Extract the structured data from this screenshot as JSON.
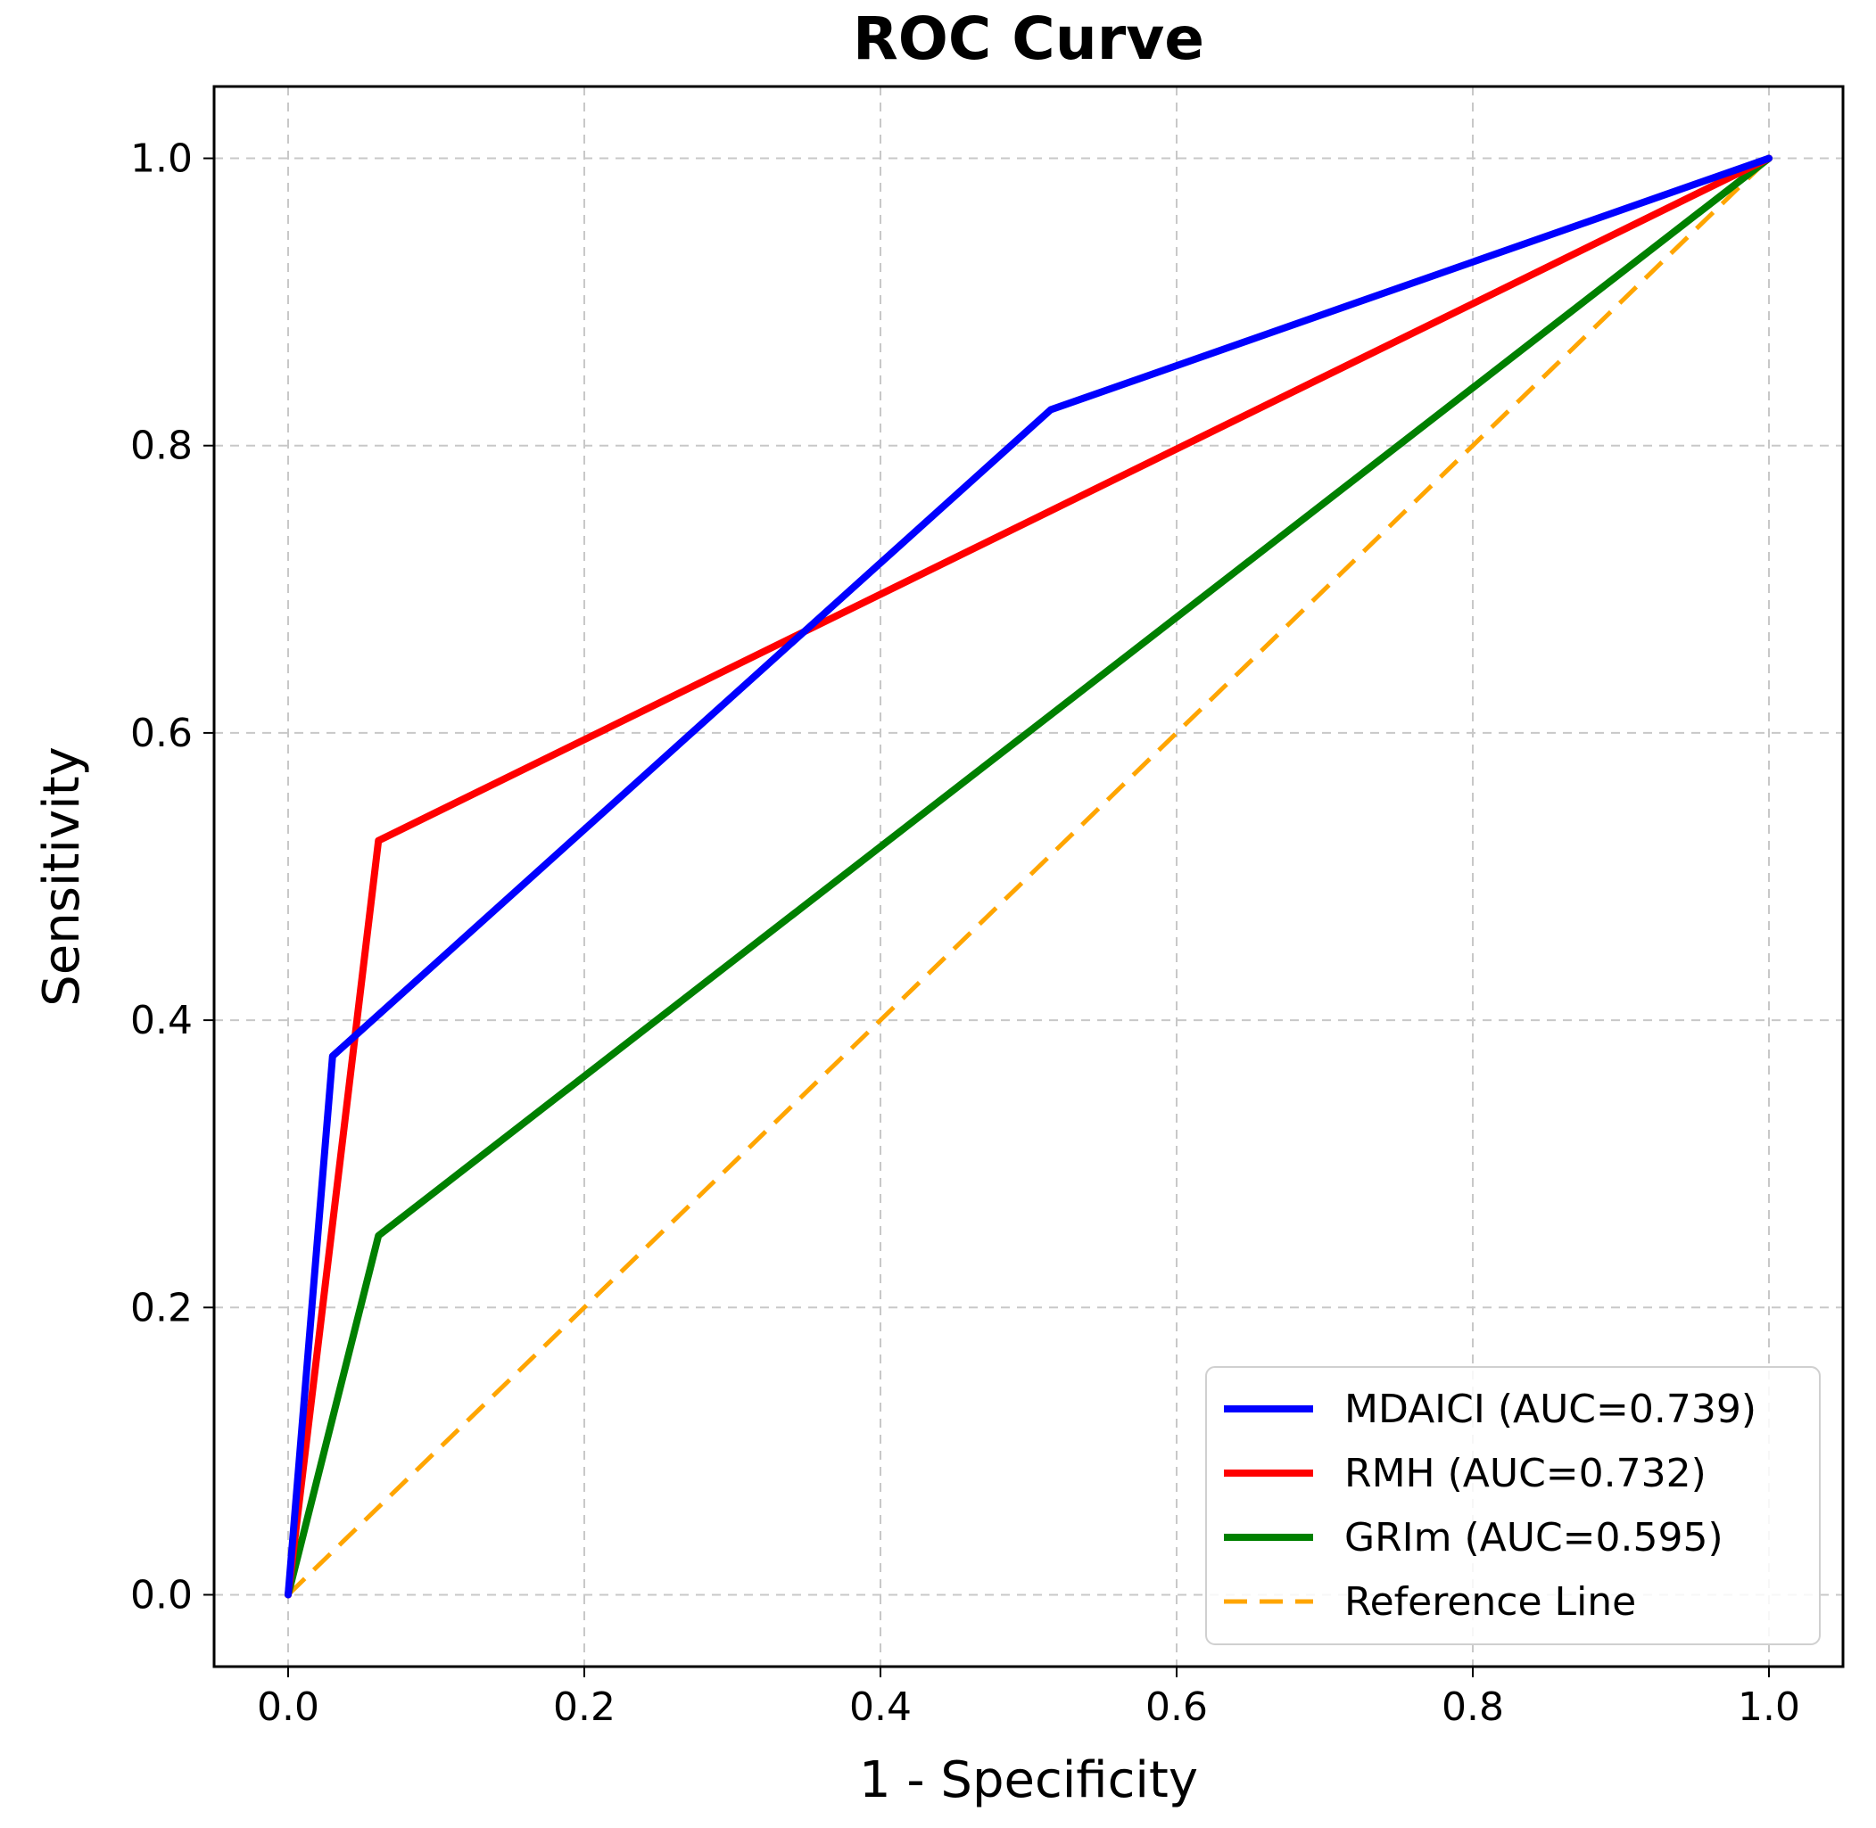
{
  "chart_data": {
    "type": "line",
    "title": "ROC Curve",
    "xlabel": "1 - Specificity",
    "ylabel": "Sensitivity",
    "xlim": [
      -0.05,
      1.05
    ],
    "ylim": [
      -0.05,
      1.05
    ],
    "xticks": [
      0.0,
      0.2,
      0.4,
      0.6,
      0.8,
      1.0
    ],
    "yticks": [
      0.0,
      0.2,
      0.4,
      0.6,
      0.8,
      1.0
    ],
    "xtick_labels": [
      "0.0",
      "0.2",
      "0.4",
      "0.6",
      "0.8",
      "1.0"
    ],
    "ytick_labels": [
      "0.0",
      "0.2",
      "0.4",
      "0.6",
      "0.8",
      "1.0"
    ],
    "grid": true,
    "legend_position": "bottom-right",
    "series": [
      {
        "name": "MDAICI (AUC=0.739)",
        "color": "#0000ff",
        "style": "solid",
        "x": [
          0.0,
          0.03,
          0.515,
          1.0
        ],
        "y": [
          0.0,
          0.375,
          0.825,
          1.0
        ]
      },
      {
        "name": "RMH (AUC=0.732)",
        "color": "#ff0000",
        "style": "solid",
        "x": [
          0.0,
          0.061,
          1.0
        ],
        "y": [
          0.0,
          0.525,
          1.0
        ]
      },
      {
        "name": "GRIm (AUC=0.595)",
        "color": "#008000",
        "style": "solid",
        "x": [
          0.0,
          0.061,
          1.0
        ],
        "y": [
          0.0,
          0.25,
          1.0
        ]
      },
      {
        "name": "Reference Line",
        "color": "#ffa500",
        "style": "dashed",
        "x": [
          0.0,
          1.0
        ],
        "y": [
          0.0,
          1.0
        ]
      }
    ]
  }
}
